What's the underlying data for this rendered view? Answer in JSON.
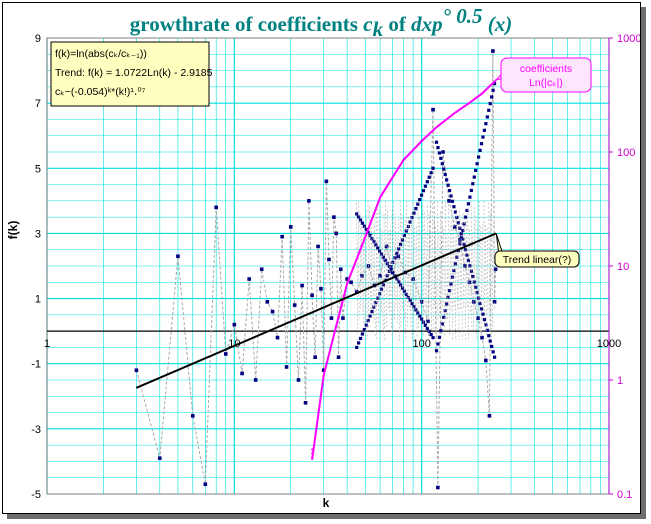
{
  "chart_data": {
    "type": "scatter",
    "title": {
      "prefix": "growthrate of coefficients ",
      "ck_base": "c",
      "ck_sub": "k",
      "of": " of ",
      "fn_base": "dxp",
      "fn_sup": "° 0.5",
      "fn_arg": " (x)"
    },
    "xlabel": "k",
    "ylabel": "f(k)",
    "x_scale": "log",
    "xlim": [
      1,
      1000
    ],
    "x_ticks": [
      "1",
      "10",
      "100",
      "1000"
    ],
    "ylim": [
      -5,
      9
    ],
    "y_ticks": [
      "-5",
      "-3",
      "-1",
      "1",
      "3",
      "5",
      "7",
      "9"
    ],
    "y2_scale": "log",
    "y2lim": [
      0.1,
      1000
    ],
    "y2_ticks": [
      "0.1",
      "1",
      "10",
      "100",
      "1000"
    ],
    "grid": true,
    "colors": {
      "title": "#008080",
      "grid": "#00e0e0",
      "markers": "#000080",
      "connector": "#a8a8a8",
      "coefficients": "#ff00ff",
      "right_axis": "#cc00cc",
      "trend": "#000000",
      "info_box": "#ffffc0"
    },
    "info_box": {
      "line1": "f(k)=ln(abs(cₖ/cₖ₋₁))",
      "line2": "Trend:  f(k) = 1.0722Ln(k) - 2.9185",
      "line3": "cₖ~(-0.054)ᵏ*(k!)¹․⁰⁷"
    },
    "callouts": {
      "coefficients": [
        "coefficients",
        "Ln(|cₖ|)"
      ],
      "trend": "Trend linear(?)"
    },
    "trend": {
      "slope": 1.0722,
      "intercept": -2.9185,
      "k_from": 3,
      "k_to": 250
    },
    "series": [
      {
        "name": "f(k)",
        "points": [
          [
            3,
            -1.2
          ],
          [
            4,
            -3.9
          ],
          [
            5,
            2.3
          ],
          [
            6,
            -2.6
          ],
          [
            7,
            -4.7
          ],
          [
            8,
            3.8
          ],
          [
            9,
            -0.7
          ],
          [
            10,
            0.2
          ],
          [
            11,
            -1.3
          ],
          [
            12,
            1.6
          ],
          [
            13,
            -1.5
          ],
          [
            14,
            1.9
          ],
          [
            15,
            0.9
          ],
          [
            16,
            0.6
          ],
          [
            17,
            -0.2
          ],
          [
            18,
            2.9
          ],
          [
            19,
            -1.1
          ],
          [
            20,
            3.2
          ],
          [
            21,
            0.8
          ],
          [
            22,
            -1.5
          ],
          [
            23,
            1.4
          ],
          [
            24,
            -2.2
          ],
          [
            25,
            4.0
          ],
          [
            26,
            1.1
          ],
          [
            27,
            -0.8
          ],
          [
            28,
            2.6
          ],
          [
            29,
            1.3
          ],
          [
            30,
            -1.2
          ],
          [
            31,
            4.6
          ],
          [
            32,
            2.2
          ],
          [
            33,
            0.4
          ],
          [
            34,
            3.5
          ],
          [
            35,
            3.0
          ],
          [
            36,
            -0.8
          ],
          [
            37,
            1.9
          ],
          [
            38,
            0.4
          ],
          [
            40,
            1.6
          ],
          [
            42,
            1.5
          ],
          [
            45,
            1.2
          ],
          [
            48,
            1.7
          ],
          [
            52,
            2.0
          ],
          [
            56,
            1.4
          ],
          [
            60,
            1.7
          ],
          [
            65,
            2.6
          ],
          [
            70,
            1.8
          ],
          [
            75,
            2.3
          ],
          [
            82,
            1.8
          ],
          [
            90,
            1.6
          ],
          [
            100,
            0.9
          ],
          [
            108,
            0.3
          ],
          [
            115,
            6.8
          ],
          [
            122,
            -4.8
          ],
          [
            130,
            5.5
          ],
          [
            140,
            4.0
          ],
          [
            150,
            3.2
          ],
          [
            160,
            2.8
          ],
          [
            170,
            2.0
          ],
          [
            180,
            1.5
          ],
          [
            190,
            0.9
          ],
          [
            200,
            0.4
          ],
          [
            210,
            -0.2
          ],
          [
            220,
            -0.9
          ],
          [
            230,
            -2.6
          ],
          [
            240,
            8.6
          ],
          [
            245,
            0.9
          ],
          [
            248,
            1.9
          ]
        ]
      },
      {
        "name": "coefficients Ln(|ck|)",
        "axis": "right",
        "points": [
          [
            26,
            0.2
          ],
          [
            30,
            1.1
          ],
          [
            35,
            3.0
          ],
          [
            40,
            7.0
          ],
          [
            50,
            18.0
          ],
          [
            60,
            40.0
          ],
          [
            70,
            60.0
          ],
          [
            80,
            85.0
          ],
          [
            100,
            125.0
          ],
          [
            120,
            165.0
          ],
          [
            150,
            220.0
          ],
          [
            180,
            270.0
          ],
          [
            210,
            325.0
          ],
          [
            250,
            430.0
          ]
        ]
      }
    ]
  }
}
